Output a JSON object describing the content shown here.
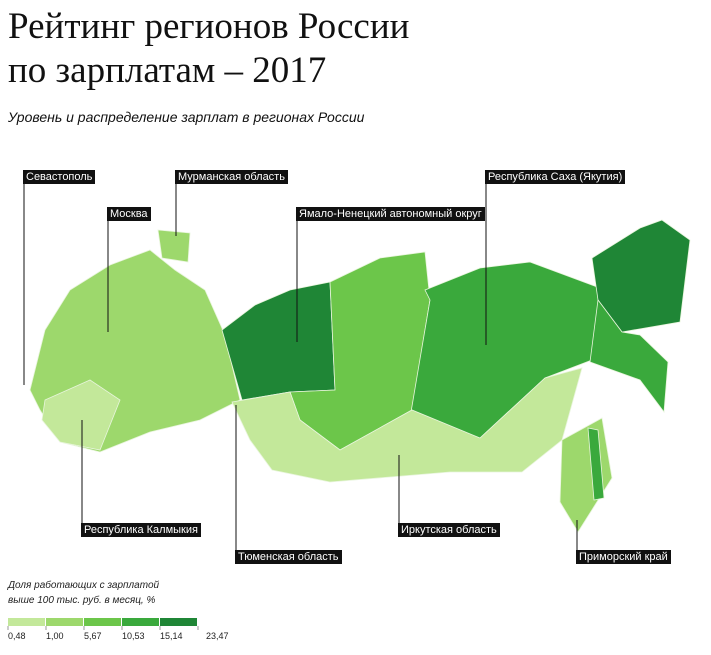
{
  "header": {
    "title": [
      "Рейтинг регионов России",
      "по зарплатам – 2017"
    ],
    "subtitle": "Уровень и распределение зарплат в регионах России"
  },
  "labels": [
    "Севастополь",
    "Москва",
    "Мурманская область",
    "Ямало-Ненецкий автономный округ",
    "Республика Саха (Якутия)",
    "Республика Калмыкия",
    "Тюменская область",
    "Иркутская область",
    "Приморский край"
  ],
  "legend": {
    "title": [
      "Доля работающих с зарплатой",
      "выше 100 тыс. руб. в месяц, %"
    ],
    "ticks": [
      {
        "value": 0.48,
        "label": "0,48"
      },
      {
        "value": 1.0,
        "label": "1,00"
      },
      {
        "value": 5.67,
        "label": "5,67"
      },
      {
        "value": 10.53,
        "label": "10,53"
      },
      {
        "value": 15.14,
        "label": "15,14"
      },
      {
        "value": 23.47,
        "label": "23,47"
      }
    ],
    "colors": [
      "#c3e89a",
      "#9dd86c",
      "#6cc64a",
      "#3aa93c",
      "#1f8636"
    ]
  }
}
